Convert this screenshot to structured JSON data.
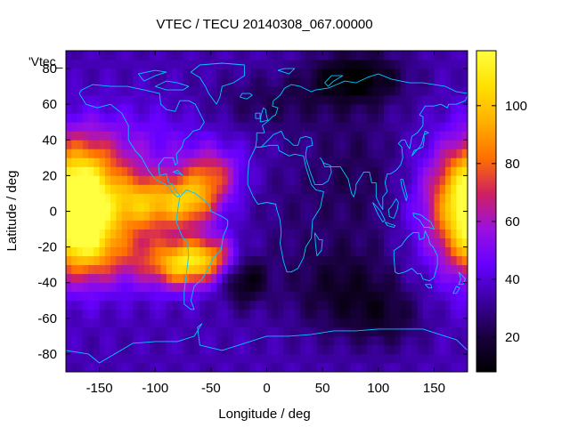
{
  "chart_data": {
    "type": "heatmap",
    "title": "VTEC / TECU 20140308_067.00000",
    "xlabel": "Longitude / deg",
    "ylabel": "Latitude / deg",
    "series_key": "'Vtec_",
    "xlim": [
      -180,
      180
    ],
    "ylim": [
      -90,
      90
    ],
    "x_ticks": [
      -150,
      -100,
      -50,
      0,
      50,
      100,
      150
    ],
    "y_ticks": [
      -80,
      -60,
      -40,
      -20,
      0,
      20,
      40,
      60,
      80
    ],
    "colorbar": {
      "range": [
        8,
        119
      ],
      "ticks": [
        20,
        40,
        60,
        80,
        100
      ],
      "palette": [
        "#000000",
        "#1a0040",
        "#3c00a0",
        "#6600ff",
        "#9a10e0",
        "#d02060",
        "#ff7000",
        "#ffb000",
        "#ffe000",
        "#ffff40"
      ]
    },
    "grid_step_deg": 5,
    "field_model": {
      "background": 35,
      "blobs": [
        {
          "lon": -165,
          "lat": 15,
          "slon": 22,
          "slat": 18,
          "amp": 45
        },
        {
          "lon": -165,
          "lat": -15,
          "slon": 20,
          "slat": 16,
          "amp": 48
        },
        {
          "lon": -140,
          "lat": 5,
          "slon": 40,
          "slat": 25,
          "amp": 25
        },
        {
          "lon": -110,
          "lat": 5,
          "slon": 20,
          "slat": 10,
          "amp": 40
        },
        {
          "lon": -70,
          "lat": 5,
          "slon": 18,
          "slat": 10,
          "amp": 50
        },
        {
          "lon": -50,
          "lat": 20,
          "slon": 18,
          "slat": 10,
          "amp": 35
        },
        {
          "lon": -75,
          "lat": -30,
          "slon": 20,
          "slat": 9,
          "amp": 55
        },
        {
          "lon": -50,
          "lat": -25,
          "slon": 18,
          "slat": 8,
          "amp": 35
        },
        {
          "lon": -120,
          "lat": -25,
          "slon": 30,
          "slat": 12,
          "amp": 20
        },
        {
          "lon": 175,
          "lat": 5,
          "slon": 25,
          "slat": 20,
          "amp": 40
        },
        {
          "lon": -100,
          "lat": 40,
          "slon": 60,
          "slat": 15,
          "amp": 8
        },
        {
          "lon": 80,
          "lat": 75,
          "slon": 30,
          "slat": 10,
          "amp": -28
        },
        {
          "lon": 0,
          "lat": 60,
          "slon": 40,
          "slat": 12,
          "amp": -12
        },
        {
          "lon": 80,
          "lat": 20,
          "slon": 30,
          "slat": 30,
          "amp": -12
        },
        {
          "lon": 70,
          "lat": -45,
          "slon": 35,
          "slat": 18,
          "amp": -18
        },
        {
          "lon": -20,
          "lat": -38,
          "slon": 14,
          "slat": 10,
          "amp": -25
        },
        {
          "lon": 110,
          "lat": -60,
          "slon": 25,
          "slat": 12,
          "amp": -12
        },
        {
          "lon": 20,
          "lat": 0,
          "slon": 25,
          "slat": 30,
          "amp": -6
        },
        {
          "lon": 160,
          "lat": -30,
          "slon": 25,
          "slat": 25,
          "amp": 5
        }
      ]
    }
  },
  "colors": {
    "coastline": "#00c8ff"
  }
}
